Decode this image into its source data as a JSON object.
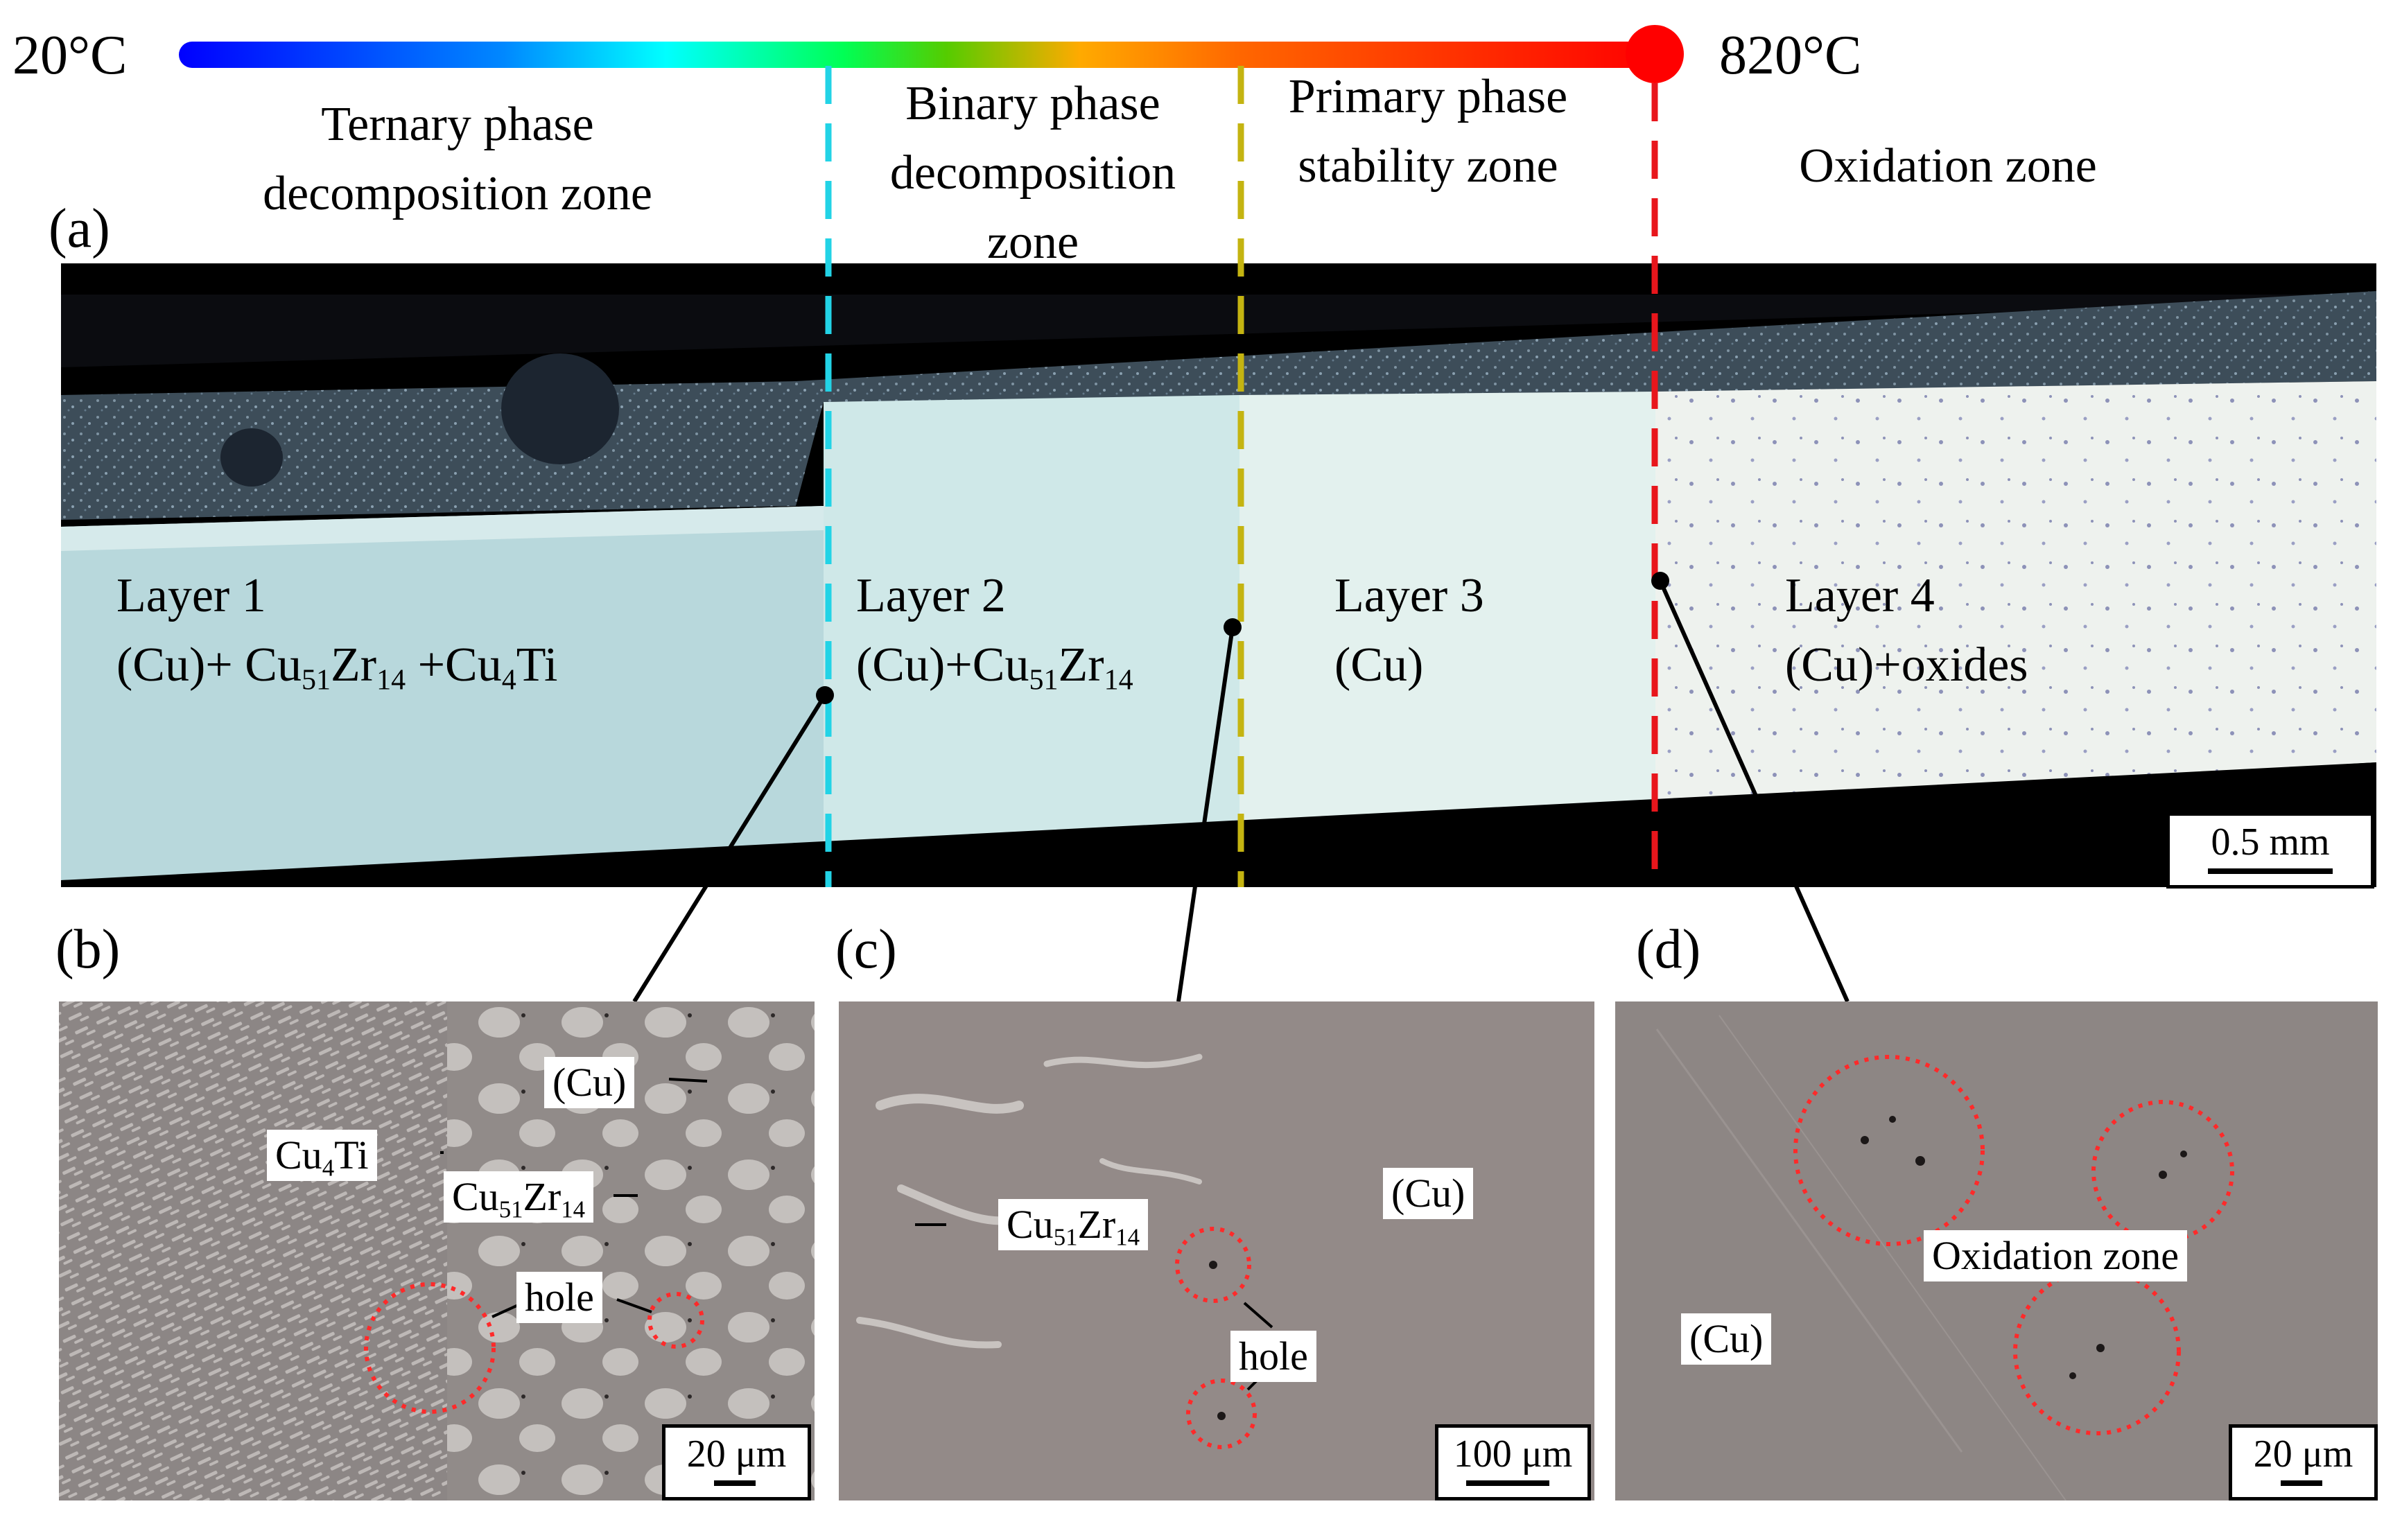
{
  "temperature_bar": {
    "min_label": "20°C",
    "max_label": "820°C",
    "gradient_colors": [
      "#0000ff",
      "#00aaff",
      "#00ffff",
      "#00ff44",
      "#66cc00",
      "#ffaa00",
      "#ff5500",
      "#ff0000"
    ],
    "end_marker_color": "#ff0000"
  },
  "zones": {
    "ternary": "Ternary phase decomposition zone",
    "binary": "Binary phase decomposition zone",
    "primary": "Primary phase stability zone",
    "oxidation": "Oxidation zone"
  },
  "divider_colors": {
    "ternary_binary": "#22d3e6",
    "binary_primary": "#c4b411",
    "primary_oxidation": "#e8161c"
  },
  "panel_labels": {
    "a": "(a)",
    "b": "(b)",
    "c": "(c)",
    "d": "(d)"
  },
  "layers": [
    {
      "name": "Layer 1",
      "phases": "(Cu)+ Cu51Zr14 +Cu4Ti"
    },
    {
      "name": "Layer 2",
      "phases": "(Cu)+Cu51Zr14"
    },
    {
      "name": "Layer 3",
      "phases": "(Cu)"
    },
    {
      "name": "Layer 4",
      "phases": "(Cu)+oxides"
    }
  ],
  "scale_bars": {
    "a": "0.5 mm",
    "b": "20 μm",
    "c": "100 μm",
    "d": "20 μm"
  },
  "panel_b_callouts": {
    "cu": "(Cu)",
    "cu4ti": "Cu4Ti",
    "cu51zr14": "Cu51Zr14",
    "hole": "hole"
  },
  "panel_c_callouts": {
    "cu": "(Cu)",
    "cu51zr14": "Cu51Zr14",
    "hole": "hole"
  },
  "panel_d_callouts": {
    "cu": "(Cu)",
    "oxidation": "Oxidation zone"
  },
  "highlight_color": "#ff2a2a"
}
